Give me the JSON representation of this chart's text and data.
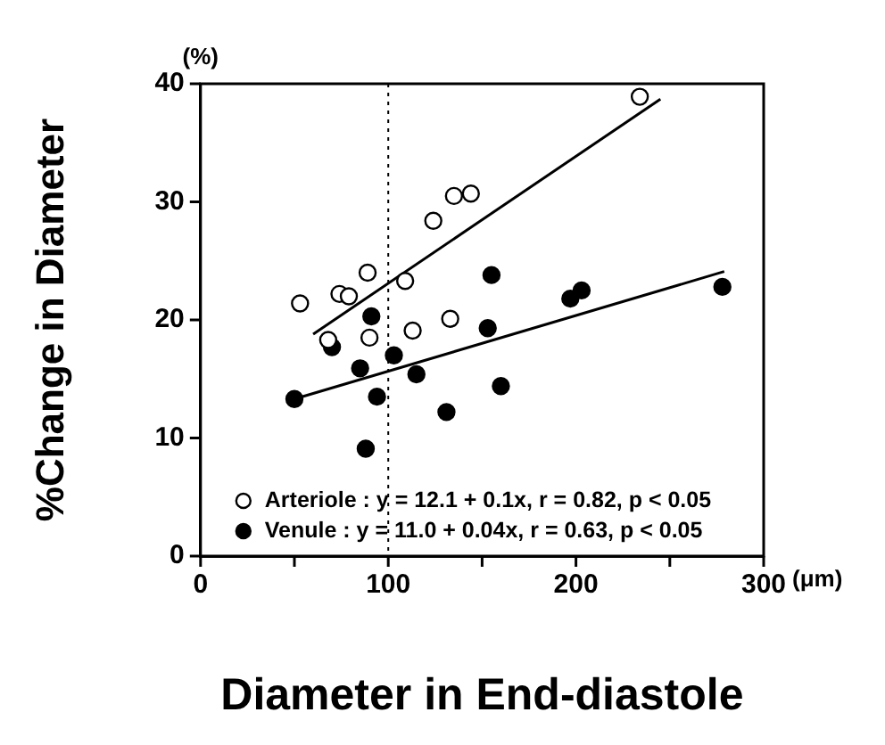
{
  "chart_data": {
    "type": "scatter",
    "xlabel": "Diameter in End-diastole",
    "ylabel": "%Change in Diameter",
    "annotations": [
      "(%)",
      "(μm)"
    ],
    "xlim": [
      0,
      300
    ],
    "xticks": [
      0,
      {
        "value": 50,
        "label": null
      },
      100,
      {
        "value": 150,
        "label": null
      },
      200,
      {
        "value": 250,
        "label": null
      },
      300
    ],
    "ylim": [
      0,
      40
    ],
    "yticks": [
      0,
      10,
      20,
      30,
      40
    ],
    "grid": false,
    "legend": "bottom",
    "marker": "circle",
    "ref_lines": [
      {
        "axis": "x",
        "value": 100,
        "line_style": "dotted",
        "color": "#000000"
      }
    ],
    "series": [
      {
        "name": "Arteriole : y = 12.1 + 0.1x, r = 0.82, p < 0.05",
        "color": "#ffffff",
        "x": [
          234,
          135,
          144,
          124,
          89,
          109,
          53,
          74,
          79,
          133,
          68,
          90,
          113
        ],
        "values": [
          38.9,
          30.5,
          30.7,
          28.4,
          24.0,
          23.3,
          21.4,
          22.2,
          22.0,
          20.1,
          18.3,
          18.5,
          19.1
        ]
      },
      {
        "name": "Venule : y = 11.0 + 0.04x, r = 0.63, p < 0.05",
        "color": "#000000",
        "x": [
          91,
          155,
          197,
          203,
          278,
          153,
          160,
          70,
          85,
          103,
          115,
          50,
          94,
          131,
          88
        ],
        "values": [
          20.3,
          23.8,
          21.8,
          22.5,
          22.8,
          19.3,
          14.4,
          17.7,
          15.9,
          17.0,
          15.4,
          13.3,
          13.5,
          12.2,
          9.1
        ]
      },
      {
        "type": "line",
        "marker": "none",
        "color": "#000000",
        "x": [
          60,
          245
        ],
        "values": [
          18.8,
          38.7
        ]
      },
      {
        "type": "line",
        "marker": "none",
        "color": "#000000",
        "x": [
          50,
          279
        ],
        "values": [
          13.3,
          24.1
        ]
      }
    ]
  }
}
